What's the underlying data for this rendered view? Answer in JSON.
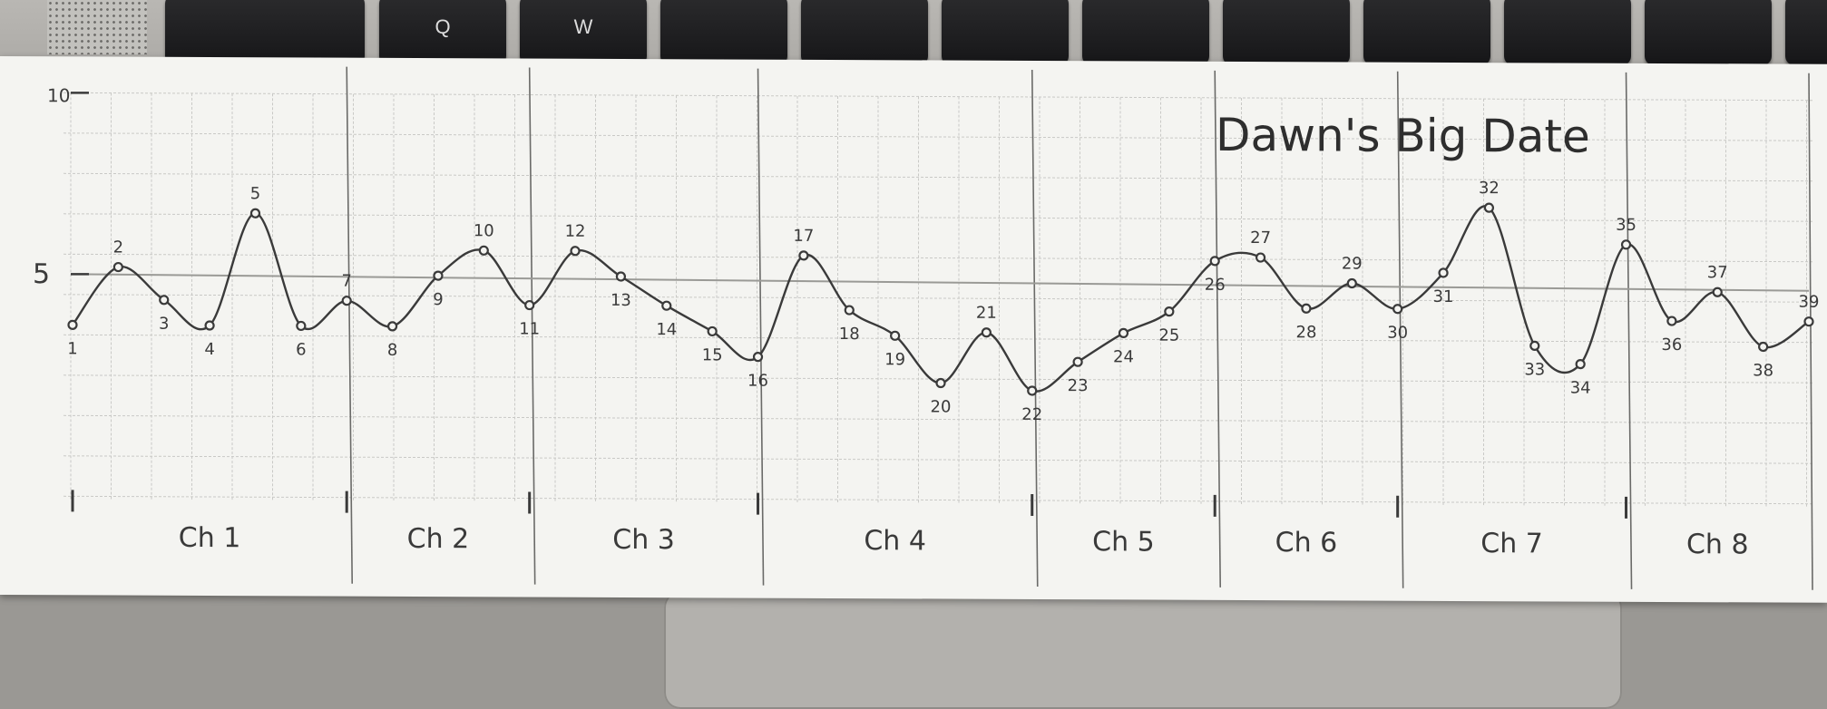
{
  "chart_data": {
    "type": "line",
    "title": "Dawn's Big Date",
    "ytick_labels": [
      {
        "value": 10,
        "label": "10"
      },
      {
        "value": 5,
        "label": "5"
      }
    ],
    "reference_line": 5,
    "ylim": [
      -3,
      11
    ],
    "grid": true,
    "chapters": [
      {
        "label": "Ch 1",
        "start": 1,
        "end": 7
      },
      {
        "label": "Ch 2",
        "start": 7,
        "end": 11
      },
      {
        "label": "Ch 3",
        "start": 11,
        "end": 16
      },
      {
        "label": "Ch 4",
        "start": 16,
        "end": 22
      },
      {
        "label": "Ch 5",
        "start": 22,
        "end": 26
      },
      {
        "label": "Ch 6",
        "start": 26,
        "end": 30
      },
      {
        "label": "Ch 7",
        "start": 30,
        "end": 35
      },
      {
        "label": "Ch 8",
        "start": 35,
        "end": 39
      }
    ],
    "points": [
      {
        "label": "1",
        "y": 3.6
      },
      {
        "label": "2",
        "y": 5.2
      },
      {
        "label": "3",
        "y": 4.3
      },
      {
        "label": "4",
        "y": 3.6
      },
      {
        "label": "5",
        "y": 6.7
      },
      {
        "label": "6",
        "y": 3.6
      },
      {
        "label": "7",
        "y": 4.3
      },
      {
        "label": "8",
        "y": 3.6
      },
      {
        "label": "9",
        "y": 5.0
      },
      {
        "label": "10",
        "y": 5.7
      },
      {
        "label": "11",
        "y": 4.2
      },
      {
        "label": "12",
        "y": 5.7
      },
      {
        "label": "13",
        "y": 5.0
      },
      {
        "label": "14",
        "y": 4.2
      },
      {
        "label": "15",
        "y": 3.5
      },
      {
        "label": "16",
        "y": 2.8
      },
      {
        "label": "17",
        "y": 5.6
      },
      {
        "label": "18",
        "y": 4.1
      },
      {
        "label": "19",
        "y": 3.4
      },
      {
        "label": "20",
        "y": 2.1
      },
      {
        "label": "21",
        "y": 3.5
      },
      {
        "label": "22",
        "y": 1.9
      },
      {
        "label": "23",
        "y": 2.7
      },
      {
        "label": "24",
        "y": 3.5
      },
      {
        "label": "25",
        "y": 4.1
      },
      {
        "label": "26",
        "y": 5.5
      },
      {
        "label": "27",
        "y": 5.6
      },
      {
        "label": "28",
        "y": 4.2
      },
      {
        "label": "29",
        "y": 4.9
      },
      {
        "label": "30",
        "y": 4.2
      },
      {
        "label": "31",
        "y": 5.2
      },
      {
        "label": "32",
        "y": 7.0
      },
      {
        "label": "33",
        "y": 3.2
      },
      {
        "label": "34",
        "y": 2.7
      },
      {
        "label": "35",
        "y": 6.0
      },
      {
        "label": "36",
        "y": 3.9
      },
      {
        "label": "37",
        "y": 4.7
      },
      {
        "label": "38",
        "y": 3.2
      },
      {
        "label": "39",
        "y": 3.9
      }
    ]
  },
  "keyboard": {
    "keys": [
      "Q",
      "W"
    ]
  },
  "colors": {
    "paper": "#f4f4f1",
    "grid": "#c9c9c6",
    "pencil": "#3a3a3a",
    "reference_line": "#9a9a96"
  }
}
